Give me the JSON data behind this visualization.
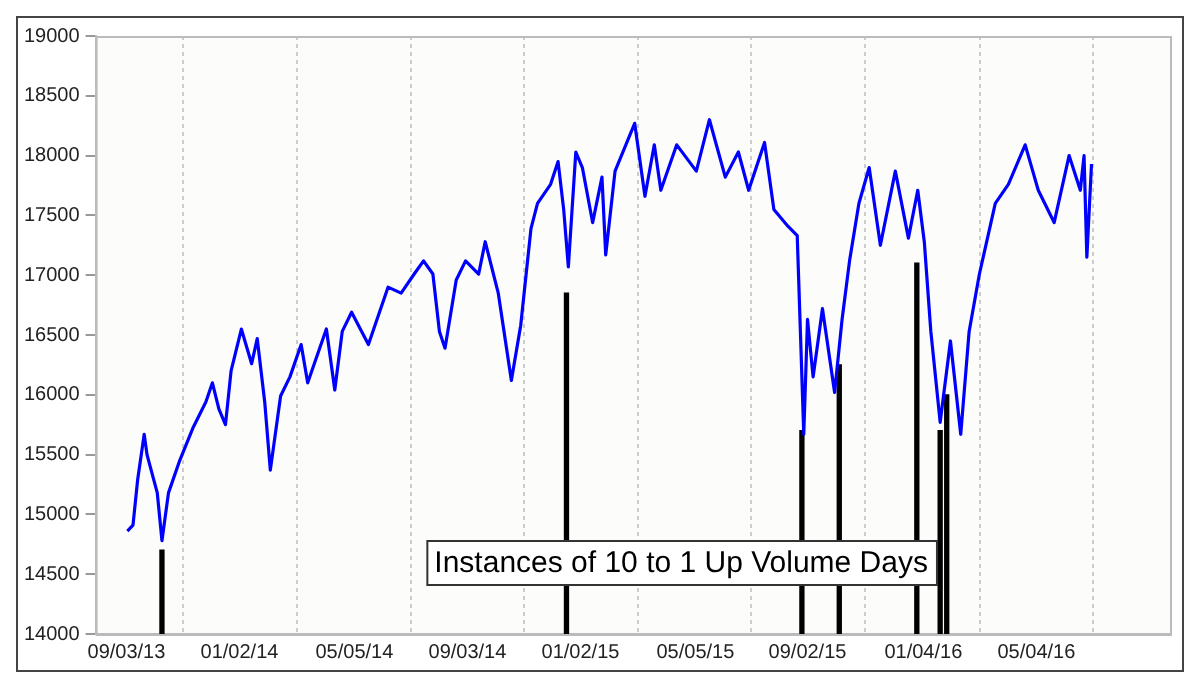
{
  "chart_data": {
    "type": "line",
    "xlim": [
      "2013-08-01",
      "2016-09-24"
    ],
    "xticks": [
      {
        "value": "2013-09-03",
        "label": "09/03/13"
      },
      {
        "value": "2014-01-02",
        "label": "01/02/14"
      },
      {
        "value": "2014-05-05",
        "label": "05/05/14"
      },
      {
        "value": "2014-09-03",
        "label": "09/03/14"
      },
      {
        "value": "2015-01-02",
        "label": "01/02/15"
      },
      {
        "value": "2015-05-05",
        "label": "05/05/15"
      },
      {
        "value": "2015-09-02",
        "label": "09/02/15"
      },
      {
        "value": "2016-01-04",
        "label": "01/04/16"
      },
      {
        "value": "2016-05-04",
        "label": "05/04/16"
      }
    ],
    "ylim": [
      14000,
      19000
    ],
    "yticks": [
      14000,
      14500,
      15000,
      15500,
      16000,
      16500,
      17000,
      17500,
      18000,
      18500,
      19000
    ],
    "grid": "x",
    "legend": false,
    "marker": "none",
    "annotations": [
      "Instances of 10 to 1 Up Volume Days"
    ],
    "series": [
      {
        "color": "#0000ff",
        "x": [
          "2013-09-04",
          "2013-09-10",
          "2013-09-15",
          "2013-09-22",
          "2013-09-25",
          "2013-10-06",
          "2013-10-11",
          "2013-10-18",
          "2013-10-30",
          "2013-11-13",
          "2013-11-27",
          "2013-12-04",
          "2013-12-11",
          "2013-12-18",
          "2013-12-24",
          "2014-01-04",
          "2014-01-15",
          "2014-01-21",
          "2014-01-29",
          "2014-02-04",
          "2014-02-15",
          "2014-02-25",
          "2014-03-09",
          "2014-03-16",
          "2014-04-05",
          "2014-04-14",
          "2014-04-22",
          "2014-05-02",
          "2014-05-20",
          "2014-06-10",
          "2014-06-24",
          "2014-07-08",
          "2014-07-18",
          "2014-07-28",
          "2014-08-04",
          "2014-08-10",
          "2014-08-22",
          "2014-09-01",
          "2014-09-15",
          "2014-09-22",
          "2014-10-06",
          "2014-10-20",
          "2014-10-30",
          "2014-11-10",
          "2014-11-17",
          "2014-12-01",
          "2014-12-09",
          "2014-12-15",
          "2014-12-20",
          "2014-12-28",
          "2015-01-04",
          "2015-01-15",
          "2015-01-25",
          "2015-01-29",
          "2015-02-08",
          "2015-03-01",
          "2015-03-12",
          "2015-03-22",
          "2015-03-29",
          "2015-04-15",
          "2015-05-06",
          "2015-05-20",
          "2015-06-06",
          "2015-06-20",
          "2015-07-01",
          "2015-07-18",
          "2015-07-28",
          "2015-08-12",
          "2015-08-22",
          "2015-08-29",
          "2015-09-02",
          "2015-09-08",
          "2015-09-18",
          "2015-10-01",
          "2015-10-09",
          "2015-10-17",
          "2015-10-27",
          "2015-11-07",
          "2015-11-19",
          "2015-12-05",
          "2015-12-19",
          "2015-12-29",
          "2016-01-05",
          "2016-01-12",
          "2016-01-22",
          "2016-02-02",
          "2016-02-13",
          "2016-02-22",
          "2016-03-04",
          "2016-03-21",
          "2016-04-04",
          "2016-04-22",
          "2016-05-06",
          "2016-05-23",
          "2016-06-08",
          "2016-06-20",
          "2016-06-24",
          "2016-06-27",
          "2016-07-02"
        ],
        "values": [
          14860,
          14910,
          15290,
          15670,
          15500,
          15180,
          14780,
          15180,
          15450,
          15720,
          15940,
          16100,
          15880,
          15750,
          16200,
          16550,
          16260,
          16470,
          15940,
          15370,
          15990,
          16150,
          16420,
          16100,
          16550,
          16040,
          16530,
          16690,
          16420,
          16900,
          16850,
          17010,
          17120,
          17010,
          16530,
          16390,
          16960,
          17120,
          17010,
          17280,
          16850,
          16120,
          16580,
          17390,
          17600,
          17760,
          17950,
          17550,
          17070,
          18030,
          17900,
          17440,
          17820,
          17170,
          17870,
          18270,
          17660,
          18090,
          17710,
          18090,
          17870,
          18300,
          17820,
          18030,
          17710,
          18110,
          17550,
          17410,
          17330,
          15670,
          16630,
          16150,
          16720,
          16020,
          16630,
          17120,
          17600,
          17900,
          17250,
          17870,
          17310,
          17710,
          17280,
          16530,
          15770,
          16450,
          15670,
          16530,
          17010,
          17600,
          17760,
          18090,
          17710,
          17440,
          18000,
          17710,
          18000,
          17150,
          17930
        ]
      },
      {
        "type": "bar",
        "color": "#000000",
        "x": [
          "2013-10-11",
          "2014-12-18",
          "2015-08-27",
          "2015-10-06",
          "2015-12-28",
          "2016-01-22",
          "2016-01-29"
        ],
        "values": [
          14700,
          16850,
          15700,
          16250,
          17100,
          15700,
          16000
        ]
      }
    ]
  }
}
